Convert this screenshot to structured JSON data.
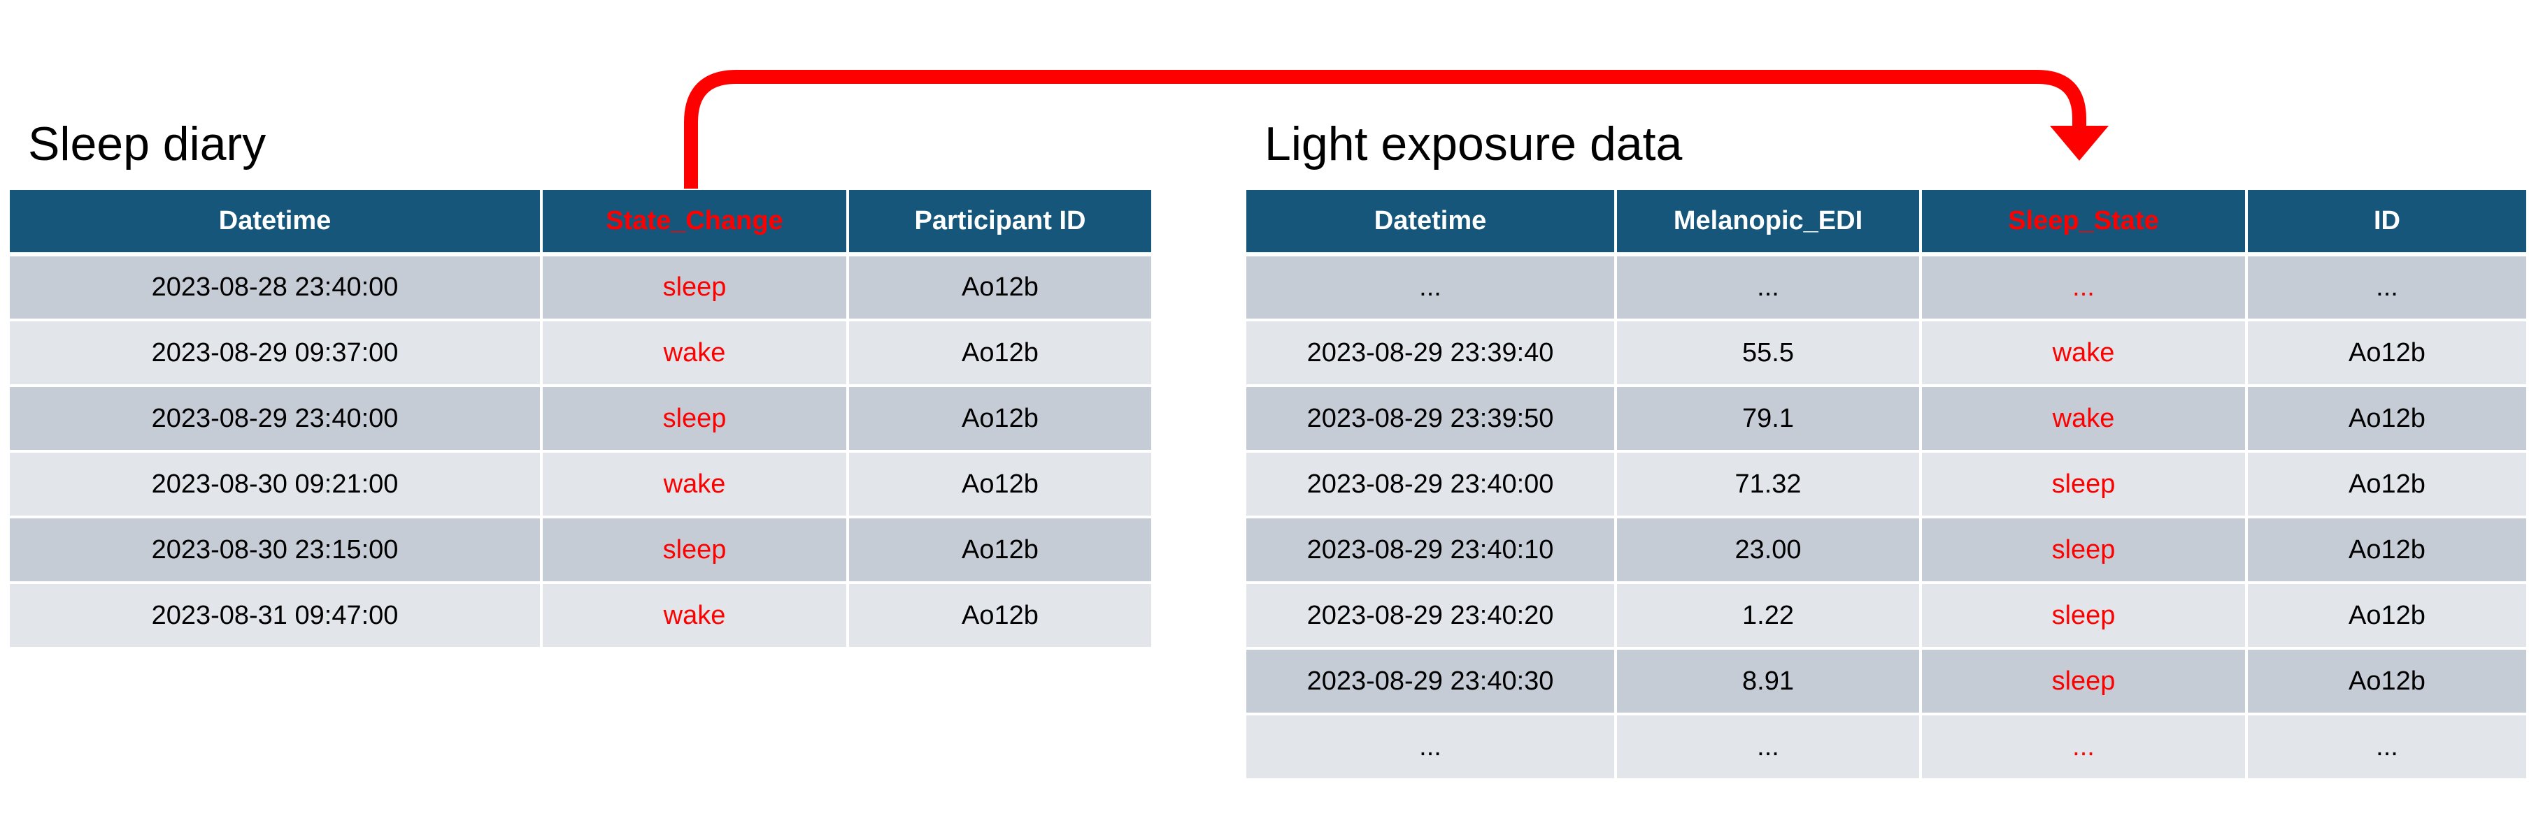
{
  "sleep_diary": {
    "title": "Sleep diary",
    "headers": [
      "Datetime",
      "State_Change",
      "Participant ID"
    ],
    "rows": [
      [
        "2023-08-28 23:40:00",
        "sleep",
        "Ao12b"
      ],
      [
        "2023-08-29 09:37:00",
        "wake",
        "Ao12b"
      ],
      [
        "2023-08-29 23:40:00",
        "sleep",
        "Ao12b"
      ],
      [
        "2023-08-30 09:21:00",
        "wake",
        "Ao12b"
      ],
      [
        "2023-08-30 23:15:00",
        "sleep",
        "Ao12b"
      ],
      [
        "2023-08-31 09:47:00",
        "wake",
        "Ao12b"
      ]
    ]
  },
  "light_exposure": {
    "title": "Light exposure data",
    "headers": [
      "Datetime",
      "Melanopic_EDI",
      "Sleep_State",
      "ID"
    ],
    "rows": [
      [
        "...",
        "...",
        "...",
        "..."
      ],
      [
        "2023-08-29 23:39:40",
        "55.5",
        "wake",
        "Ao12b"
      ],
      [
        "2023-08-29 23:39:50",
        "79.1",
        "wake",
        "Ao12b"
      ],
      [
        "2023-08-29 23:40:00",
        "71.32",
        "sleep",
        "Ao12b"
      ],
      [
        "2023-08-29 23:40:10",
        "23.00",
        "sleep",
        "Ao12b"
      ],
      [
        "2023-08-29 23:40:20",
        "1.22",
        "sleep",
        "Ao12b"
      ],
      [
        "2023-08-29 23:40:30",
        "8.91",
        "sleep",
        "Ao12b"
      ],
      [
        "...",
        "...",
        "...",
        "..."
      ]
    ]
  },
  "colors": {
    "header_bg": "#17567b",
    "row_dark": "#c6ccd5",
    "row_light": "#e2e6ea",
    "highlight": "#ff0000",
    "arrow": "#ff0000"
  }
}
